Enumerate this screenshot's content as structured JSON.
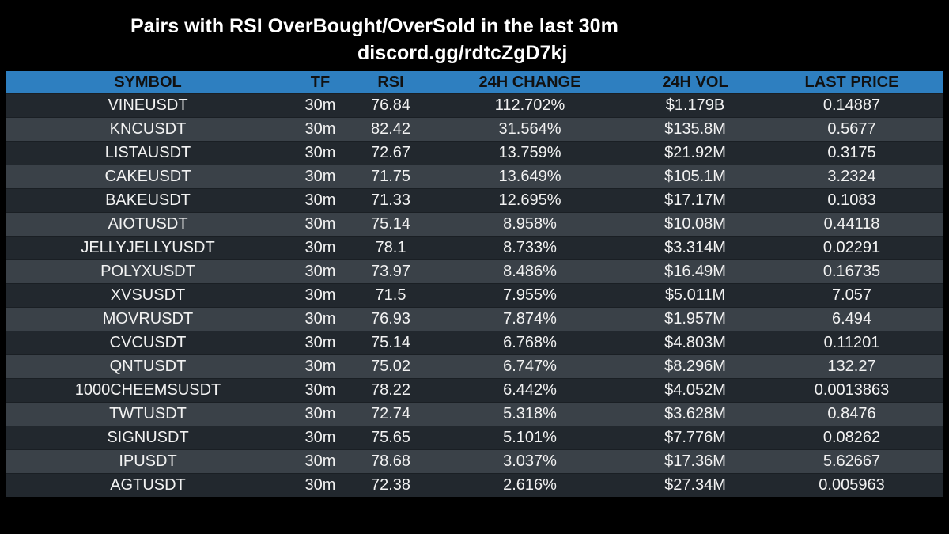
{
  "header": {
    "title": "Pairs with RSI OverBought/OverSold in the last 30m",
    "subtitle": "discord.gg/rdtcZgD7kj"
  },
  "colors": {
    "background": "#000000",
    "header_row": "#2e7fc0",
    "row_dark": "#22282e",
    "row_light": "#3a4148",
    "text": "#f2f2f2",
    "header_text": "#111111"
  },
  "chart_data": {
    "type": "table",
    "columns": [
      "SYMBOL",
      "TF",
      "RSI",
      "24H CHANGE",
      "24H VOL",
      "LAST PRICE"
    ],
    "rows": [
      [
        "VINEUSDT",
        "30m",
        "76.84",
        "112.702%",
        "$1.179B",
        "0.14887"
      ],
      [
        "KNCUSDT",
        "30m",
        "82.42",
        "31.564%",
        "$135.8M",
        "0.5677"
      ],
      [
        "LISTAUSDT",
        "30m",
        "72.67",
        "13.759%",
        "$21.92M",
        "0.3175"
      ],
      [
        "CAKEUSDT",
        "30m",
        "71.75",
        "13.649%",
        "$105.1M",
        "3.2324"
      ],
      [
        "BAKEUSDT",
        "30m",
        "71.33",
        "12.695%",
        "$17.17M",
        "0.1083"
      ],
      [
        "AIOTUSDT",
        "30m",
        "75.14",
        "8.958%",
        "$10.08M",
        "0.44118"
      ],
      [
        "JELLYJELLYUSDT",
        "30m",
        "78.1",
        "8.733%",
        "$3.314M",
        "0.02291"
      ],
      [
        "POLYXUSDT",
        "30m",
        "73.97",
        "8.486%",
        "$16.49M",
        "0.16735"
      ],
      [
        "XVSUSDT",
        "30m",
        "71.5",
        "7.955%",
        "$5.011M",
        "7.057"
      ],
      [
        "MOVRUSDT",
        "30m",
        "76.93",
        "7.874%",
        "$1.957M",
        "6.494"
      ],
      [
        "CVCUSDT",
        "30m",
        "75.14",
        "6.768%",
        "$4.803M",
        "0.11201"
      ],
      [
        "QNTUSDT",
        "30m",
        "75.02",
        "6.747%",
        "$8.296M",
        "132.27"
      ],
      [
        "1000CHEEMSUSDT",
        "30m",
        "78.22",
        "6.442%",
        "$4.052M",
        "0.0013863"
      ],
      [
        "TWTUSDT",
        "30m",
        "72.74",
        "5.318%",
        "$3.628M",
        "0.8476"
      ],
      [
        "SIGNUSDT",
        "30m",
        "75.65",
        "5.101%",
        "$7.776M",
        "0.08262"
      ],
      [
        "IPUSDT",
        "30m",
        "78.68",
        "3.037%",
        "$17.36M",
        "5.62667"
      ],
      [
        "AGTUSDT",
        "30m",
        "72.38",
        "2.616%",
        "$27.34M",
        "0.005963"
      ]
    ]
  }
}
